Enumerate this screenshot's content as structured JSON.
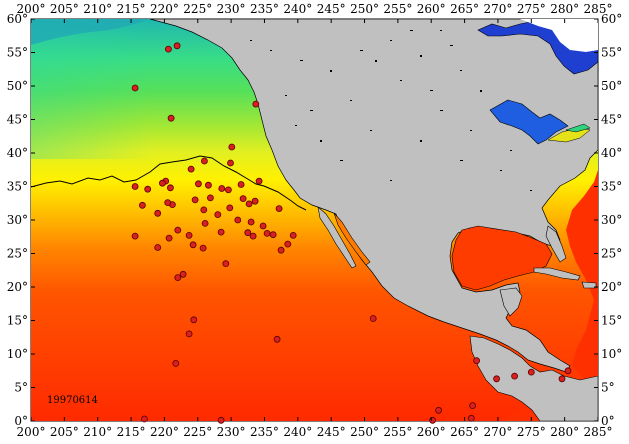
{
  "chart_data": {
    "type": "map",
    "map_kind": "sea surface temperature with buoy/station markers",
    "date_label": "19970614",
    "x_range_deg": [
      200,
      285
    ],
    "y_range_deg": [
      0,
      60
    ],
    "x_tick_labels": [
      "200°",
      "205°",
      "210°",
      "215°",
      "220°",
      "225°",
      "230°",
      "235°",
      "240°",
      "245°",
      "250°",
      "255°",
      "260°",
      "265°",
      "270°",
      "275°",
      "280°",
      "285°"
    ],
    "y_tick_labels": [
      "0°",
      "5°",
      "10°",
      "15°",
      "20°",
      "25°",
      "30°",
      "35°",
      "40°",
      "45°",
      "50°",
      "55°",
      "60°"
    ],
    "color_scale": [
      "#0a2fc4",
      "#1fa0e8",
      "#2fd9b0",
      "#3ee07a",
      "#7ee23d",
      "#d9ef22",
      "#fff200",
      "#ffb200",
      "#ff6a00",
      "#ff2200"
    ],
    "land_color": "#c0c0c0",
    "markers": [
      {
        "lon": 220.6,
        "lat": 55.5
      },
      {
        "lon": 221.9,
        "lat": 56.0
      },
      {
        "lon": 215.6,
        "lat": 49.7
      },
      {
        "lon": 221.0,
        "lat": 45.2
      },
      {
        "lon": 233.7,
        "lat": 47.3
      },
      {
        "lon": 230.1,
        "lat": 40.9
      },
      {
        "lon": 226.0,
        "lat": 38.8
      },
      {
        "lon": 229.9,
        "lat": 38.5
      },
      {
        "lon": 224.0,
        "lat": 37.6
      },
      {
        "lon": 220.2,
        "lat": 35.8
      },
      {
        "lon": 219.7,
        "lat": 35.5
      },
      {
        "lon": 215.6,
        "lat": 35.0
      },
      {
        "lon": 217.5,
        "lat": 34.6
      },
      {
        "lon": 220.9,
        "lat": 34.8
      },
      {
        "lon": 225.1,
        "lat": 35.4
      },
      {
        "lon": 226.6,
        "lat": 35.2
      },
      {
        "lon": 228.6,
        "lat": 34.7
      },
      {
        "lon": 229.6,
        "lat": 34.5
      },
      {
        "lon": 231.5,
        "lat": 35.3
      },
      {
        "lon": 234.2,
        "lat": 35.8
      },
      {
        "lon": 231.8,
        "lat": 33.2
      },
      {
        "lon": 226.9,
        "lat": 33.3
      },
      {
        "lon": 224.6,
        "lat": 33.0
      },
      {
        "lon": 221.2,
        "lat": 32.3
      },
      {
        "lon": 220.5,
        "lat": 32.6
      },
      {
        "lon": 216.7,
        "lat": 32.2
      },
      {
        "lon": 219.0,
        "lat": 31.0
      },
      {
        "lon": 225.9,
        "lat": 31.5
      },
      {
        "lon": 229.8,
        "lat": 31.8
      },
      {
        "lon": 232.7,
        "lat": 32.4
      },
      {
        "lon": 233.6,
        "lat": 32.8
      },
      {
        "lon": 237.2,
        "lat": 31.7
      },
      {
        "lon": 228.0,
        "lat": 30.8
      },
      {
        "lon": 231.0,
        "lat": 30.0
      },
      {
        "lon": 233.0,
        "lat": 29.7
      },
      {
        "lon": 234.8,
        "lat": 29.1
      },
      {
        "lon": 226.1,
        "lat": 29.5
      },
      {
        "lon": 222.0,
        "lat": 28.5
      },
      {
        "lon": 220.7,
        "lat": 27.3
      },
      {
        "lon": 223.7,
        "lat": 27.7
      },
      {
        "lon": 228.5,
        "lat": 28.2
      },
      {
        "lon": 232.5,
        "lat": 28.1
      },
      {
        "lon": 235.4,
        "lat": 28.0
      },
      {
        "lon": 236.3,
        "lat": 27.8
      },
      {
        "lon": 233.3,
        "lat": 27.6
      },
      {
        "lon": 239.3,
        "lat": 27.7
      },
      {
        "lon": 238.5,
        "lat": 26.4
      },
      {
        "lon": 224.3,
        "lat": 26.3
      },
      {
        "lon": 225.8,
        "lat": 25.8
      },
      {
        "lon": 219.0,
        "lat": 25.9
      },
      {
        "lon": 237.5,
        "lat": 25.5
      },
      {
        "lon": 215.6,
        "lat": 27.6
      },
      {
        "lon": 229.2,
        "lat": 23.5
      },
      {
        "lon": 222.8,
        "lat": 21.9
      },
      {
        "lon": 222.0,
        "lat": 21.4
      },
      {
        "lon": 224.4,
        "lat": 15.1
      },
      {
        "lon": 223.7,
        "lat": 13.0
      },
      {
        "lon": 221.7,
        "lat": 8.6
      },
      {
        "lon": 236.9,
        "lat": 12.2
      },
      {
        "lon": 251.3,
        "lat": 15.3
      },
      {
        "lon": 266.8,
        "lat": 9.0
      },
      {
        "lon": 269.8,
        "lat": 6.3
      },
      {
        "lon": 272.5,
        "lat": 6.7
      },
      {
        "lon": 275.0,
        "lat": 7.3
      },
      {
        "lon": 279.6,
        "lat": 6.3
      },
      {
        "lon": 280.5,
        "lat": 7.5
      },
      {
        "lon": 266.2,
        "lat": 2.3
      },
      {
        "lon": 261.1,
        "lat": 1.6
      },
      {
        "lon": 266.0,
        "lat": 0.4
      },
      {
        "lon": 217.0,
        "lat": 0.3
      },
      {
        "lon": 228.5,
        "lat": 0.1
      },
      {
        "lon": 260.2,
        "lat": 0.1
      }
    ]
  }
}
